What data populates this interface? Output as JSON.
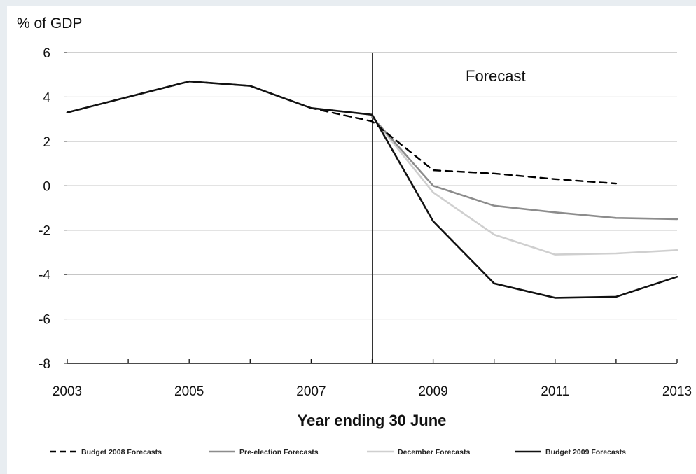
{
  "chart_data": {
    "type": "line",
    "unit_label": "% of GDP",
    "xlabel": "Year ending 30 June",
    "ylabel": "",
    "annotation": "Forecast",
    "forecast_divider_x": 2008,
    "xlim": [
      2003,
      2013
    ],
    "ylim": [
      -8,
      6
    ],
    "x_ticks": [
      2003,
      2005,
      2007,
      2009,
      2011,
      2013
    ],
    "y_ticks": [
      6,
      4,
      2,
      0,
      -2,
      -4,
      -6,
      -8
    ],
    "grid": "horizontal",
    "legend_position": "bottom",
    "series": [
      {
        "name": "Budget 2008 Forecasts",
        "color": "#000000",
        "style": "dashed",
        "points": [
          [
            2003,
            3.3
          ],
          [
            2004,
            4.0
          ],
          [
            2005,
            4.7
          ],
          [
            2006,
            4.5
          ],
          [
            2007,
            3.5
          ],
          [
            2008,
            2.9
          ],
          [
            2009,
            0.7
          ],
          [
            2010,
            0.55
          ],
          [
            2011,
            0.3
          ],
          [
            2012,
            0.1
          ]
        ]
      },
      {
        "name": "Pre-election Forecasts",
        "color": "#8c8c8c",
        "style": "solid",
        "points": [
          [
            2008,
            3.1
          ],
          [
            2009,
            0.0
          ],
          [
            2010,
            -0.9
          ],
          [
            2011,
            -1.2
          ],
          [
            2012,
            -1.45
          ],
          [
            2013,
            -1.5
          ]
        ]
      },
      {
        "name": "December Forecasts",
        "color": "#cfcfcf",
        "style": "solid",
        "points": [
          [
            2008,
            3.1
          ],
          [
            2009,
            -0.3
          ],
          [
            2010,
            -2.2
          ],
          [
            2011,
            -3.1
          ],
          [
            2012,
            -3.05
          ],
          [
            2013,
            -2.9
          ]
        ]
      },
      {
        "name": "Budget 2009 Forecasts",
        "color": "#111111",
        "style": "solid",
        "points": [
          [
            2003,
            3.3
          ],
          [
            2004,
            4.0
          ],
          [
            2005,
            4.7
          ],
          [
            2006,
            4.5
          ],
          [
            2007,
            3.5
          ],
          [
            2008,
            3.2
          ],
          [
            2009,
            -1.6
          ],
          [
            2010,
            -4.4
          ],
          [
            2011,
            -5.05
          ],
          [
            2012,
            -5.0
          ],
          [
            2013,
            -4.1
          ]
        ]
      }
    ]
  }
}
